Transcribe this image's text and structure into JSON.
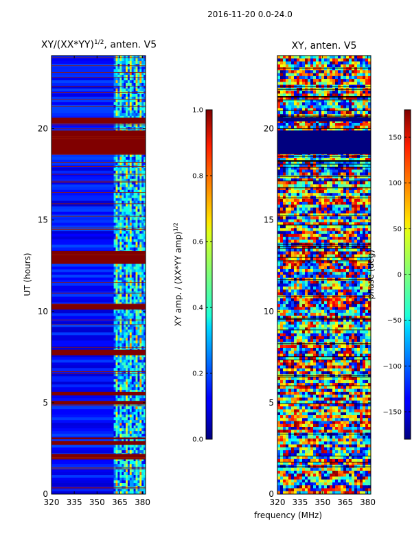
{
  "figure": {
    "suptitle": "2016-11-20 0.0-24.0",
    "xlabel_shared": "frequency (MHz)"
  },
  "chart_data": [
    {
      "type": "heatmap",
      "title_prefix": "XY/(XX*YY)",
      "title_sup": "1/2",
      "title_suffix": ", anten. V5",
      "xlabel": "",
      "ylabel": "UT (hours)",
      "xlim": [
        320,
        382
      ],
      "ylim": [
        0,
        24
      ],
      "xticks": [
        320,
        335,
        350,
        365,
        380
      ],
      "yticks": [
        0,
        5,
        10,
        15,
        20
      ],
      "colorbar": {
        "label_prefix": "XY amp. / (XX*YY amp)",
        "label_sup": "1/2",
        "range": [
          0.0,
          1.0
        ],
        "ticks": [
          0.0,
          0.2,
          0.4,
          0.6,
          0.8,
          1.0
        ],
        "tick_labels": [
          "0.0",
          "0.2",
          "0.4",
          "0.6",
          "0.8",
          "1.0"
        ]
      },
      "saturated_bands_hours": [
        [
          18.6,
          19.9
        ],
        [
          20.3,
          20.6
        ],
        [
          12.6,
          13.3
        ],
        [
          10.1,
          10.4
        ],
        [
          7.6,
          7.9
        ],
        [
          5.4,
          5.6
        ],
        [
          4.9,
          5.1
        ],
        [
          1.9,
          2.2
        ],
        [
          2.7,
          2.9
        ],
        [
          3.0,
          3.1
        ]
      ],
      "bright_freq_band_mhz": [
        361,
        382
      ],
      "colormap": "jet"
    },
    {
      "type": "heatmap",
      "title": "XY, anten. V5",
      "xlabel": "frequency (MHz)",
      "ylabel": "",
      "xlim": [
        320,
        382
      ],
      "ylim": [
        0,
        24
      ],
      "xticks": [
        320,
        335,
        350,
        365,
        380
      ],
      "yticks": [
        0,
        5,
        10,
        15,
        20
      ],
      "colorbar": {
        "label": "phase (deg)",
        "range": [
          -180,
          180
        ],
        "ticks": [
          -150,
          -100,
          -50,
          0,
          50,
          100,
          150
        ],
        "tick_labels": [
          "−150",
          "−100",
          "−50",
          "0",
          "50",
          "100",
          "150"
        ]
      },
      "dark_bands_hours": [
        [
          18.6,
          19.9
        ],
        [
          20.4,
          20.6
        ]
      ],
      "colormap": "jet"
    }
  ]
}
